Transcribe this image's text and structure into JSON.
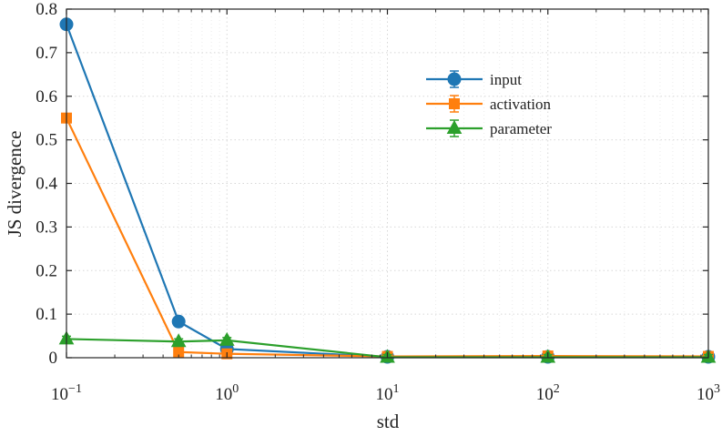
{
  "chart_data": {
    "type": "line",
    "title": "",
    "xlabel": "std",
    "ylabel": "JS divergence",
    "xscale": "log",
    "xlim": [
      0.1,
      1000
    ],
    "ylim": [
      0,
      0.8
    ],
    "grid": true,
    "legend_position": "upper-right-inside",
    "x": [
      0.1,
      0.5,
      1,
      10,
      100,
      1000
    ],
    "x_tick_labels": [
      {
        "value": 0.1,
        "base": "10",
        "exp": "−1"
      },
      {
        "value": 1,
        "base": "10",
        "exp": "0"
      },
      {
        "value": 10,
        "base": "10",
        "exp": "1"
      },
      {
        "value": 100,
        "base": "10",
        "exp": "2"
      },
      {
        "value": 1000,
        "base": "10",
        "exp": "3"
      }
    ],
    "y_ticks": [
      0,
      0.1,
      0.2,
      0.3,
      0.4,
      0.5,
      0.6,
      0.7,
      0.8
    ],
    "y_tick_labels": [
      "0",
      "0.1",
      "0.2",
      "0.3",
      "0.4",
      "0.5",
      "0.6",
      "0.7",
      "0.8"
    ],
    "series": [
      {
        "name": "input",
        "marker": "circle",
        "color": "#1f77b4",
        "values": [
          0.765,
          0.083,
          0.02,
          0.002,
          0.002,
          0.002
        ]
      },
      {
        "name": "activation",
        "marker": "square",
        "color": "#ff7f0e",
        "values": [
          0.55,
          0.013,
          0.009,
          0.003,
          0.004,
          0.003
        ]
      },
      {
        "name": "parameter",
        "marker": "triangle",
        "color": "#2ca02c",
        "values": [
          0.043,
          0.037,
          0.04,
          0.001,
          0.001,
          0.001
        ]
      }
    ]
  }
}
